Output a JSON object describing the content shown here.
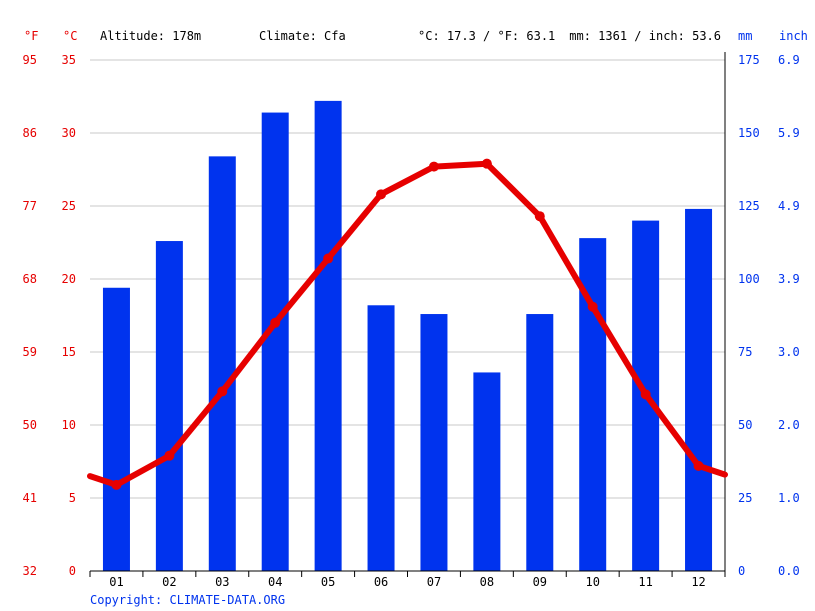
{
  "header": {
    "unit_f": "°F",
    "unit_c": "°C",
    "altitude": "Altitude: 178m",
    "climate": "Climate: Cfa",
    "temp_avg": "°C: 17.3 / °F: 63.1",
    "precip_total": "mm: 1361 / inch: 53.6",
    "unit_mm": "mm",
    "unit_inch": "inch"
  },
  "footer": {
    "copyright": "Copyright: CLIMATE-DATA.ORG"
  },
  "colors": {
    "temperature": "#e60000",
    "precipitation": "#0033ee",
    "grid": "#c8c8c8",
    "axis": "#000000"
  },
  "chart_data": {
    "type": "bar+line",
    "categories": [
      "01",
      "02",
      "03",
      "04",
      "05",
      "06",
      "07",
      "08",
      "09",
      "10",
      "11",
      "12"
    ],
    "series": [
      {
        "type": "bar",
        "axis": "right-mm",
        "values": [
          97,
          113,
          142,
          157,
          161,
          91,
          88,
          68,
          88,
          114,
          120,
          124
        ]
      },
      {
        "type": "line",
        "axis": "left-c",
        "values": [
          5.9,
          7.9,
          12.3,
          17.0,
          21.4,
          25.8,
          27.7,
          27.9,
          24.3,
          18.1,
          12.1,
          7.2
        ],
        "extend_left": 6.5,
        "extend_right": 6.6
      }
    ],
    "left_axis_c": {
      "ticks": [
        "35",
        "30",
        "25",
        "20",
        "15",
        "10",
        "5",
        "0"
      ],
      "range": [
        0,
        35
      ]
    },
    "left_axis_f": {
      "ticks": [
        "95",
        "86",
        "77",
        "68",
        "59",
        "50",
        "41",
        "32"
      ]
    },
    "right_axis_mm": {
      "ticks": [
        "175",
        "150",
        "125",
        "100",
        "75",
        "50",
        "25",
        "0"
      ],
      "range": [
        0,
        175
      ]
    },
    "right_axis_inch": {
      "ticks": [
        "6.9",
        "5.9",
        "4.9",
        "3.9",
        "3.0",
        "2.0",
        "1.0",
        "0.0"
      ]
    },
    "grid": true
  }
}
